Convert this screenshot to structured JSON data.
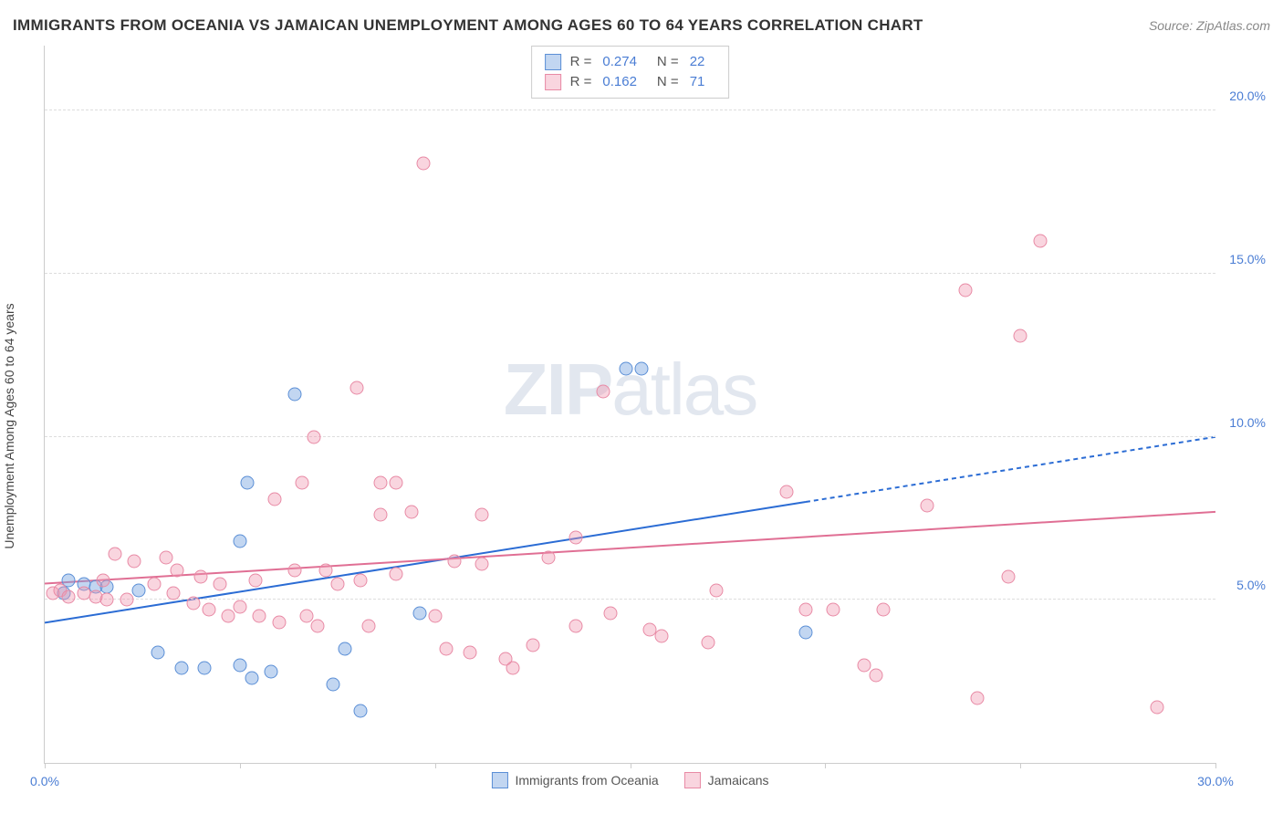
{
  "title": "IMMIGRANTS FROM OCEANIA VS JAMAICAN UNEMPLOYMENT AMONG AGES 60 TO 64 YEARS CORRELATION CHART",
  "source": "Source: ZipAtlas.com",
  "ylabel": "Unemployment Among Ages 60 to 64 years",
  "watermark_bold": "ZIP",
  "watermark_rest": "atlas",
  "chart": {
    "type": "scatter",
    "background_color": "#ffffff",
    "grid_color": "#dddddd",
    "axis_color": "#cccccc",
    "xlim": [
      0,
      30
    ],
    "ylim": [
      0,
      22
    ],
    "x_ticks": [
      0,
      5,
      10,
      15,
      20,
      25,
      30
    ],
    "x_tick_labels": {
      "0": "0.0%",
      "30": "30.0%"
    },
    "y_gridlines": [
      5,
      10,
      15,
      20
    ],
    "y_tick_labels": {
      "5": "5.0%",
      "10": "10.0%",
      "15": "15.0%",
      "20": "20.0%"
    },
    "marker_size": 15,
    "series": [
      {
        "name": "Immigrants from Oceania",
        "fill": "rgba(120,165,225,0.45)",
        "stroke": "#5b8fd6",
        "r": "0.274",
        "n": "22",
        "trend": {
          "color": "#2b6cd4",
          "width": 2,
          "y_at_x0": 4.3,
          "y_at_xmax": 10.0,
          "solid_until_x": 19.5
        },
        "points": [
          [
            6.4,
            11.3
          ],
          [
            14.9,
            12.1
          ],
          [
            15.3,
            12.1
          ],
          [
            5.2,
            8.6
          ],
          [
            5.0,
            6.8
          ],
          [
            0.6,
            5.6
          ],
          [
            1.0,
            5.5
          ],
          [
            1.3,
            5.4
          ],
          [
            1.6,
            5.4
          ],
          [
            0.5,
            5.2
          ],
          [
            2.4,
            5.3
          ],
          [
            9.6,
            4.6
          ],
          [
            7.7,
            3.5
          ],
          [
            19.5,
            4.0
          ],
          [
            2.9,
            3.4
          ],
          [
            3.5,
            2.9
          ],
          [
            5.0,
            3.0
          ],
          [
            4.1,
            2.9
          ],
          [
            5.3,
            2.6
          ],
          [
            7.4,
            2.4
          ],
          [
            8.1,
            1.6
          ],
          [
            5.8,
            2.8
          ]
        ]
      },
      {
        "name": "Jamaicans",
        "fill": "rgba(240,150,175,0.40)",
        "stroke": "#e88aa5",
        "r": "0.162",
        "n": "71",
        "trend": {
          "color": "#e06f94",
          "width": 2,
          "y_at_x0": 5.5,
          "y_at_xmax": 7.7,
          "solid_until_x": 30
        },
        "points": [
          [
            9.7,
            18.4
          ],
          [
            25.5,
            16.0
          ],
          [
            23.6,
            14.5
          ],
          [
            25.0,
            13.1
          ],
          [
            14.3,
            11.4
          ],
          [
            8.0,
            11.5
          ],
          [
            6.9,
            10.0
          ],
          [
            8.6,
            8.6
          ],
          [
            9.0,
            8.6
          ],
          [
            6.6,
            8.6
          ],
          [
            5.9,
            8.1
          ],
          [
            13.6,
            6.9
          ],
          [
            8.6,
            7.6
          ],
          [
            9.4,
            7.7
          ],
          [
            11.2,
            7.6
          ],
          [
            19.0,
            8.3
          ],
          [
            22.6,
            7.9
          ],
          [
            24.7,
            5.7
          ],
          [
            1.8,
            6.4
          ],
          [
            2.3,
            6.2
          ],
          [
            3.1,
            6.3
          ],
          [
            3.4,
            5.9
          ],
          [
            4.0,
            5.7
          ],
          [
            4.5,
            5.5
          ],
          [
            5.4,
            5.6
          ],
          [
            6.4,
            5.9
          ],
          [
            7.2,
            5.9
          ],
          [
            7.5,
            5.5
          ],
          [
            8.1,
            5.6
          ],
          [
            9.0,
            5.8
          ],
          [
            10.5,
            6.2
          ],
          [
            11.2,
            6.1
          ],
          [
            12.9,
            6.3
          ],
          [
            17.2,
            5.3
          ],
          [
            19.5,
            4.7
          ],
          [
            20.2,
            4.7
          ],
          [
            21.5,
            4.7
          ],
          [
            0.2,
            5.2
          ],
          [
            0.4,
            5.3
          ],
          [
            0.6,
            5.1
          ],
          [
            1.0,
            5.2
          ],
          [
            1.3,
            5.1
          ],
          [
            1.6,
            5.0
          ],
          [
            1.5,
            5.6
          ],
          [
            2.1,
            5.0
          ],
          [
            2.8,
            5.5
          ],
          [
            3.3,
            5.2
          ],
          [
            3.8,
            4.9
          ],
          [
            4.2,
            4.7
          ],
          [
            4.7,
            4.5
          ],
          [
            5.0,
            4.8
          ],
          [
            5.5,
            4.5
          ],
          [
            6.0,
            4.3
          ],
          [
            6.7,
            4.5
          ],
          [
            7.0,
            4.2
          ],
          [
            8.3,
            4.2
          ],
          [
            10.0,
            4.5
          ],
          [
            10.3,
            3.5
          ],
          [
            10.9,
            3.4
          ],
          [
            12.0,
            2.9
          ],
          [
            13.6,
            4.2
          ],
          [
            14.5,
            4.6
          ],
          [
            15.5,
            4.1
          ],
          [
            17.0,
            3.7
          ],
          [
            21.0,
            3.0
          ],
          [
            21.3,
            2.7
          ],
          [
            23.9,
            2.0
          ],
          [
            28.5,
            1.7
          ],
          [
            11.8,
            3.2
          ],
          [
            12.5,
            3.6
          ],
          [
            15.8,
            3.9
          ]
        ]
      }
    ],
    "legend_bottom": [
      {
        "label": "Immigrants from Oceania",
        "fill": "rgba(120,165,225,0.45)",
        "stroke": "#5b8fd6"
      },
      {
        "label": "Jamaicans",
        "fill": "rgba(240,150,175,0.40)",
        "stroke": "#e88aa5"
      }
    ]
  }
}
